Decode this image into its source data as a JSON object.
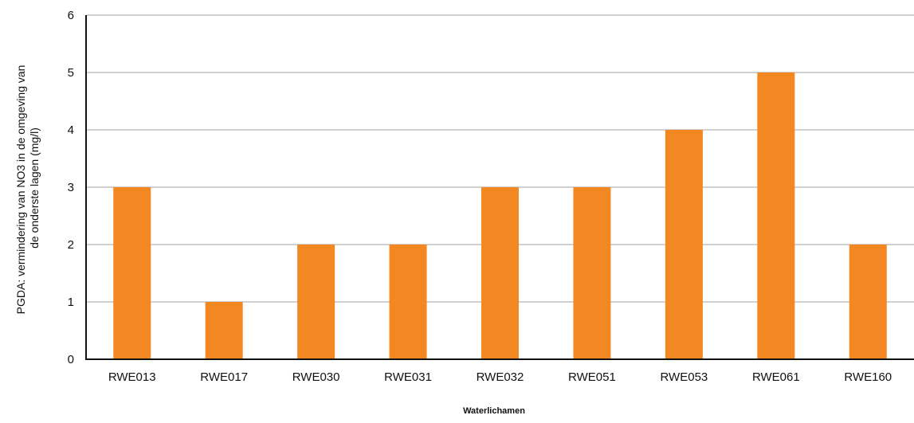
{
  "chart_data": {
    "type": "bar",
    "title": "",
    "xlabel": "Waterlichamen",
    "ylabel": "PGDA: vermindering van NO3 in  de omgeving van de onderste lagen (mg/l)",
    "ylabel_lines": [
      "PGDA: vermindering van NO3 in  de omgeving van",
      "de onderste lagen (mg/l)"
    ],
    "categories": [
      "RWE013",
      "RWE017",
      "RWE030",
      "RWE031",
      "RWE032",
      "RWE051",
      "RWE053",
      "RWE061",
      "RWE160"
    ],
    "values": [
      3,
      1,
      2,
      2,
      3,
      3,
      4,
      5,
      2
    ],
    "ylim": [
      0,
      6
    ],
    "yticks": [
      "0",
      "1",
      "2",
      "3",
      "4",
      "5",
      "6"
    ],
    "grid": true,
    "legend": "none",
    "bar_color": "#f38721",
    "grid_color": "#d0d0d0",
    "axis_color": "#111111"
  }
}
